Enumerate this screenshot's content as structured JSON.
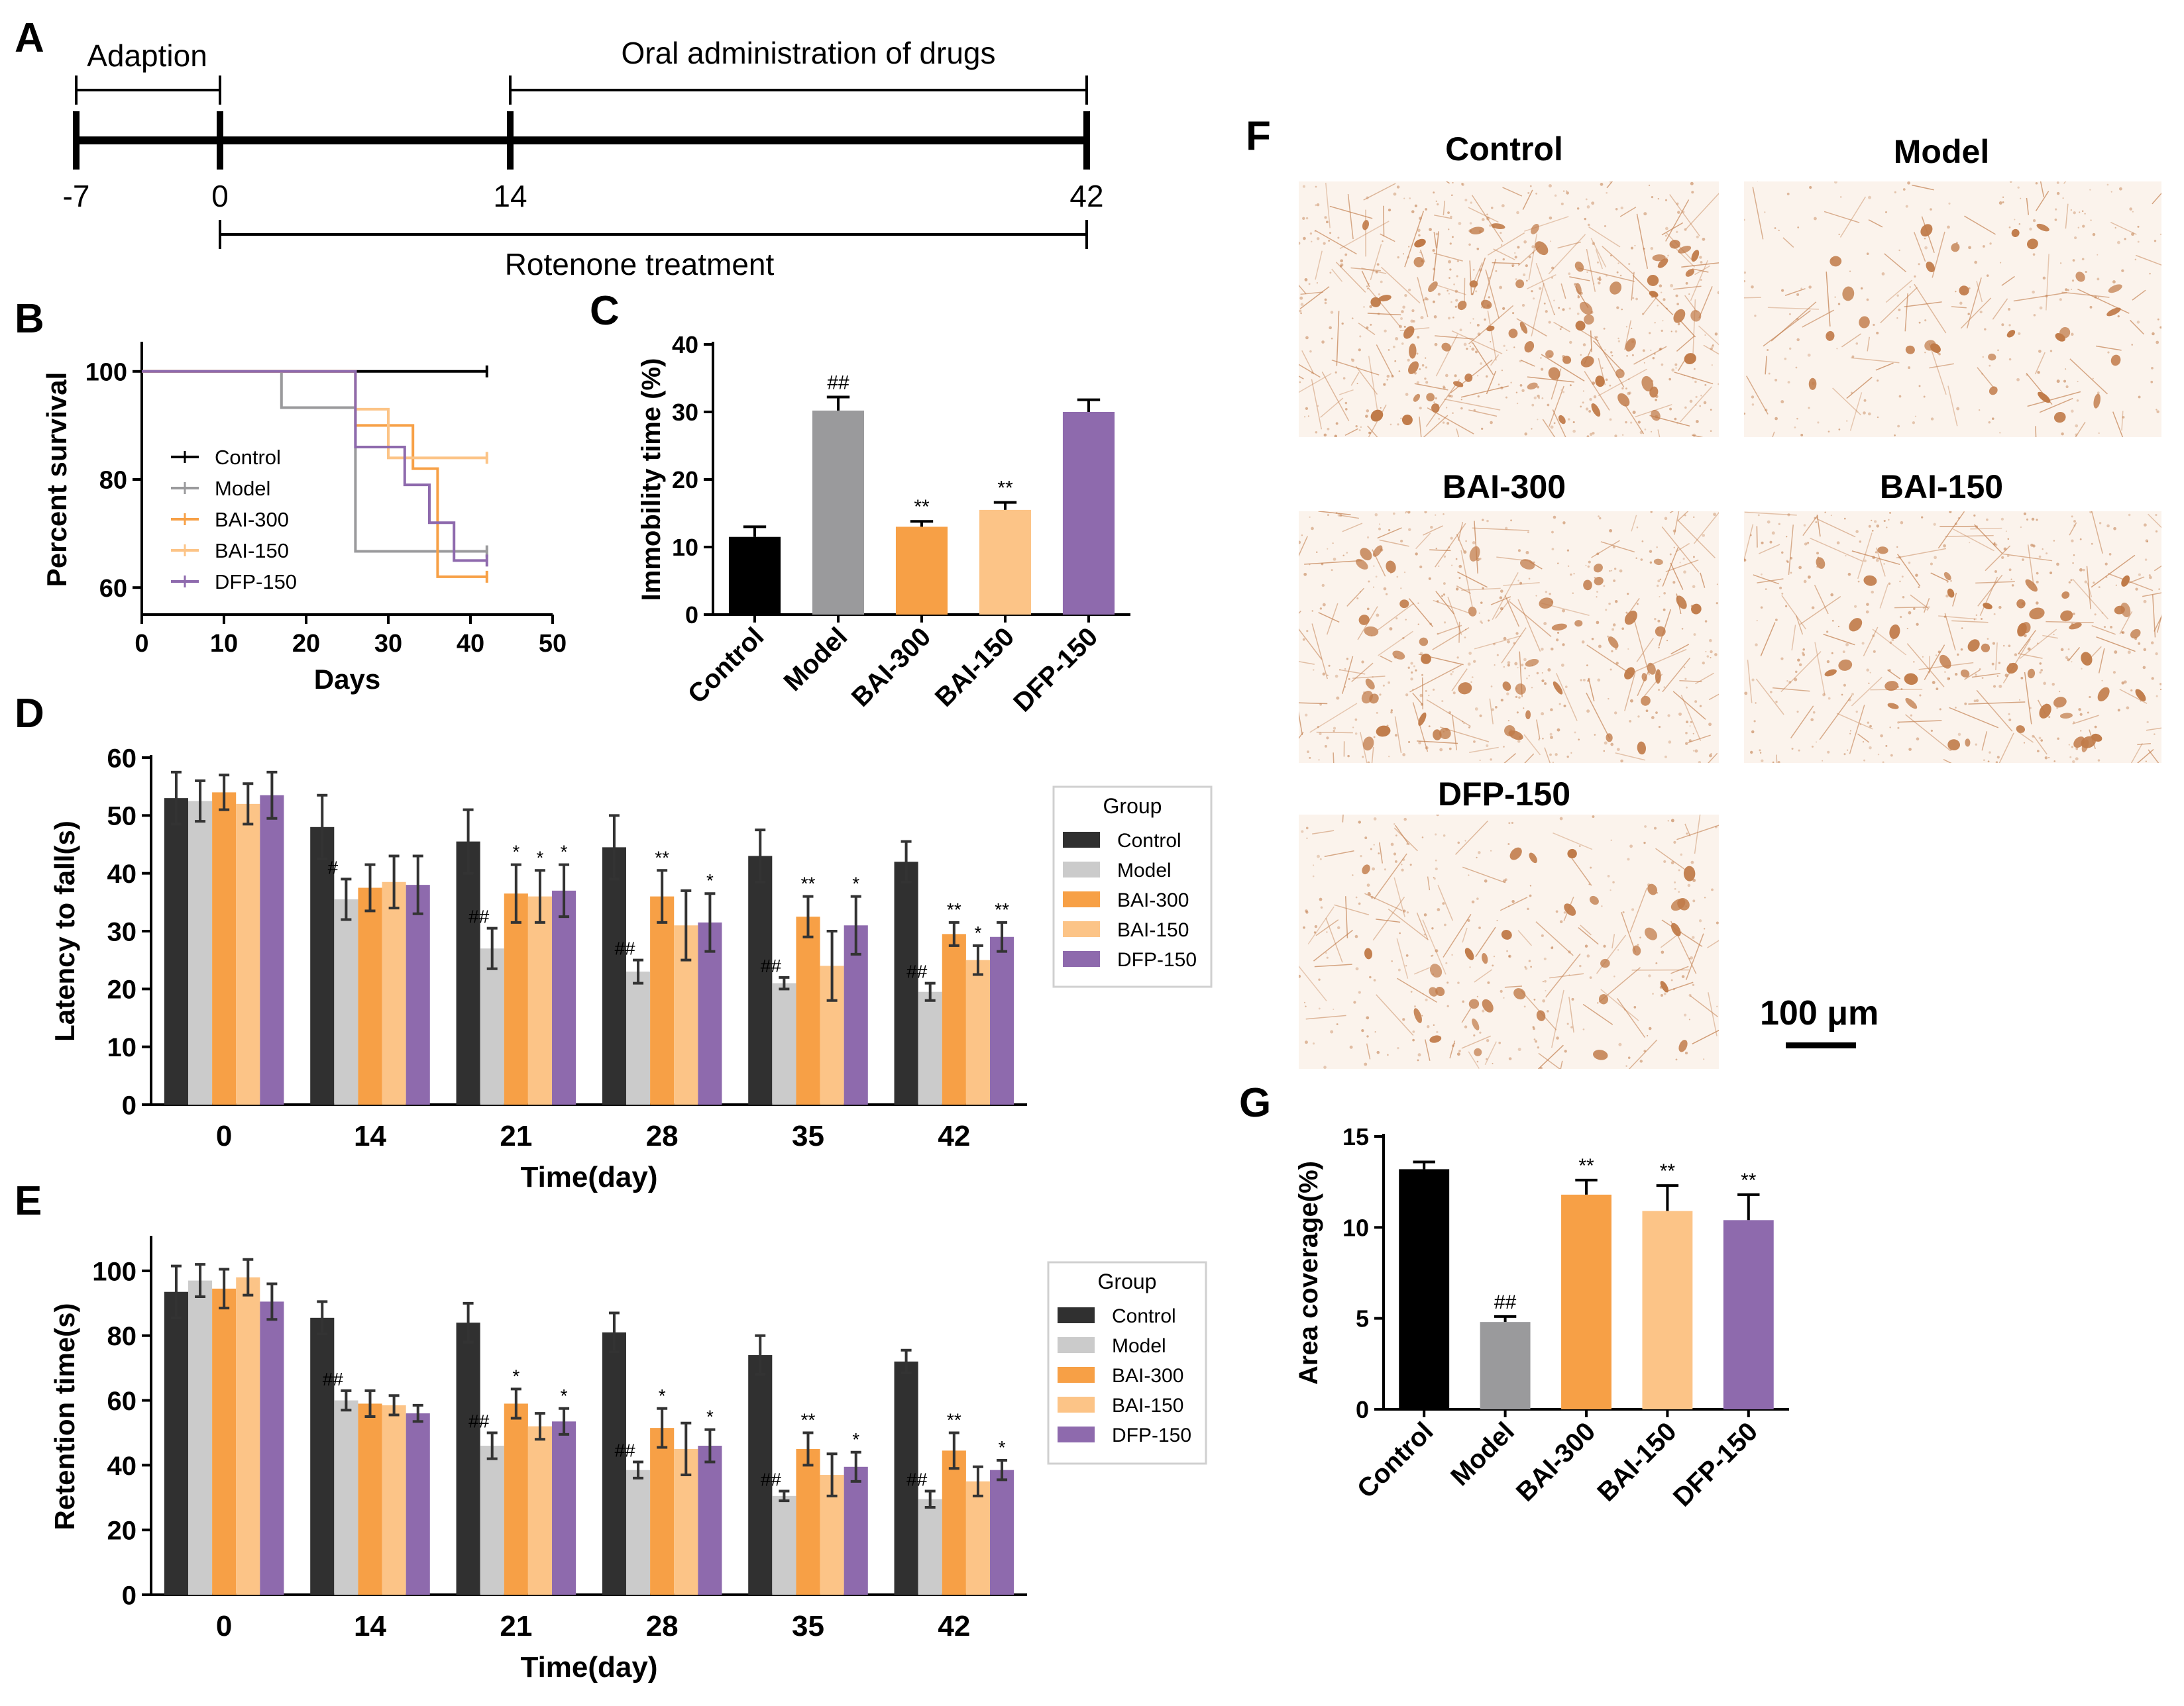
{
  "colors": {
    "control": "#000000",
    "model": "#9a9a9c",
    "bai300": "#f7a046",
    "bai150": "#fcc487",
    "dfp150": "#8e6aad",
    "control_dark": "#303030",
    "model_light": "#cbcbcb",
    "stain": "#c07a48"
  },
  "panel_labels": {
    "A": "A",
    "B": "B",
    "C": "C",
    "D": "D",
    "E": "E",
    "F": "F",
    "G": "G"
  },
  "timeline": {
    "adaption_label": "Adaption",
    "oral_label": "Oral administration of drugs",
    "rotenone_label": "Rotenone treatment",
    "ticks": [
      "-7",
      "0",
      "14",
      "42"
    ]
  },
  "micrographs": {
    "titles": [
      "Control",
      "Model",
      "BAI-300",
      "BAI-150",
      "DFP-150"
    ],
    "scale_bar_label": "100 μm"
  },
  "chart_data": [
    {
      "panel": "B",
      "type": "line",
      "xlabel": "Days",
      "ylabel": "Percent survival",
      "xlim": [
        0,
        50
      ],
      "ylim": [
        55,
        105
      ],
      "xticks": [
        "0",
        "10",
        "20",
        "30",
        "40",
        "50"
      ],
      "yticks": [
        "60",
        "80",
        "100"
      ],
      "series": [
        {
          "name": "Control",
          "color": "#000000",
          "steps": [
            [
              0,
              100
            ],
            [
              42,
              100
            ]
          ]
        },
        {
          "name": "Model",
          "color": "#9a9a9c",
          "steps": [
            [
              0,
              100
            ],
            [
              17,
              100
            ],
            [
              17,
              93.3
            ],
            [
              26,
              93.3
            ],
            [
              26,
              66.7
            ],
            [
              42,
              66.7
            ]
          ]
        },
        {
          "name": "BAI-300",
          "color": "#f7a046",
          "steps": [
            [
              0,
              100
            ],
            [
              26,
              100
            ],
            [
              26,
              90
            ],
            [
              33,
              90
            ],
            [
              33,
              82
            ],
            [
              36,
              82
            ],
            [
              36,
              62
            ],
            [
              42,
              62
            ]
          ]
        },
        {
          "name": "BAI-150",
          "color": "#fcc487",
          "steps": [
            [
              0,
              100
            ],
            [
              26,
              100
            ],
            [
              26,
              93
            ],
            [
              30,
              93
            ],
            [
              30,
              84
            ],
            [
              42,
              84
            ]
          ]
        },
        {
          "name": "DFP-150",
          "color": "#8e6aad",
          "steps": [
            [
              0,
              100
            ],
            [
              26,
              100
            ],
            [
              26,
              86
            ],
            [
              32,
              86
            ],
            [
              32,
              79
            ],
            [
              35,
              79
            ],
            [
              35,
              72
            ],
            [
              38,
              72
            ],
            [
              38,
              65
            ],
            [
              42,
              65
            ]
          ]
        }
      ]
    },
    {
      "panel": "C",
      "type": "bar",
      "ylabel": "Immobility time (%)",
      "ylim": [
        0,
        40
      ],
      "yticks": [
        "0",
        "10",
        "20",
        "30",
        "40"
      ],
      "categories": [
        "Control",
        "Model",
        "BAI-300",
        "BAI-150",
        "DFP-150"
      ],
      "values": [
        11.5,
        30.2,
        13.0,
        15.5,
        30.0
      ],
      "errors": [
        1.5,
        2.0,
        0.8,
        1.1,
        1.8
      ],
      "annotations": [
        "",
        "##",
        "**",
        "**",
        ""
      ]
    },
    {
      "panel": "D",
      "type": "bar",
      "xlabel": "Time(day)",
      "ylabel": "Latency to fall(s)",
      "ylim": [
        0,
        60
      ],
      "yticks": [
        "0",
        "10",
        "20",
        "30",
        "40",
        "50",
        "60"
      ],
      "legend_title": "Group",
      "categories": [
        "0",
        "14",
        "21",
        "28",
        "35",
        "42"
      ],
      "series": [
        {
          "name": "Control",
          "color": "#303030",
          "values": [
            53,
            48,
            45.5,
            44.5,
            43,
            42
          ],
          "errors": [
            4.5,
            5.5,
            5.5,
            5.5,
            4.5,
            3.5
          ],
          "annotations": [
            "",
            "",
            "",
            "",
            "",
            ""
          ]
        },
        {
          "name": "Model",
          "color": "#cbcbcb",
          "values": [
            52.5,
            35.5,
            27,
            23,
            21,
            19.5
          ],
          "errors": [
            3.5,
            3.5,
            3.5,
            2,
            1,
            1.5
          ],
          "annotations": [
            "",
            "#",
            "##",
            "##",
            "##",
            "##"
          ]
        },
        {
          "name": "BAI-300",
          "color": "#f7a046",
          "values": [
            54,
            37.5,
            36.5,
            36,
            32.5,
            29.5
          ],
          "errors": [
            3,
            4,
            5,
            4.5,
            3.5,
            2
          ],
          "annotations": [
            "",
            "",
            "*",
            "**",
            "**",
            "**"
          ]
        },
        {
          "name": "BAI-150",
          "color": "#fcc487",
          "values": [
            52,
            38.5,
            36,
            31,
            24,
            25
          ],
          "errors": [
            3.5,
            4.5,
            4.5,
            6,
            6,
            2.5
          ],
          "annotations": [
            "",
            "",
            "*",
            "",
            "",
            "*"
          ]
        },
        {
          "name": "DFP-150",
          "color": "#8e6aad",
          "values": [
            53.5,
            38,
            37,
            31.5,
            31,
            29
          ],
          "errors": [
            4,
            5,
            4.5,
            5,
            5,
            2.5
          ],
          "annotations": [
            "",
            "",
            "*",
            "*",
            "*",
            "**"
          ]
        }
      ]
    },
    {
      "panel": "E",
      "type": "bar",
      "xlabel": "Time(day)",
      "ylabel": "Retention time(s)",
      "ylim": [
        0,
        110
      ],
      "yticks": [
        "0",
        "20",
        "40",
        "60",
        "80",
        "100"
      ],
      "legend_title": "Group",
      "categories": [
        "0",
        "14",
        "21",
        "28",
        "35",
        "42"
      ],
      "series": [
        {
          "name": "Control",
          "color": "#303030",
          "values": [
            93.5,
            85.5,
            84,
            81,
            74,
            72
          ],
          "errors": [
            8,
            5,
            6,
            6,
            6,
            3.5
          ],
          "annotations": [
            "",
            "",
            "",
            "",
            "",
            ""
          ]
        },
        {
          "name": "Model",
          "color": "#cbcbcb",
          "values": [
            97,
            60,
            46,
            38.5,
            30.5,
            29.5
          ],
          "errors": [
            5,
            3,
            4,
            2.5,
            1.5,
            2.5
          ],
          "annotations": [
            "",
            "##",
            "##",
            "##",
            "##",
            "##"
          ]
        },
        {
          "name": "BAI-300",
          "color": "#f7a046",
          "values": [
            94.5,
            59,
            59,
            51.5,
            45,
            44.5
          ],
          "errors": [
            6,
            4,
            4.5,
            6,
            5,
            5.5
          ],
          "annotations": [
            "",
            "",
            "*",
            "*",
            "**",
            "**"
          ]
        },
        {
          "name": "BAI-150",
          "color": "#fcc487",
          "values": [
            98,
            58.5,
            52,
            45,
            37,
            35
          ],
          "errors": [
            5.5,
            3,
            4,
            8,
            6.5,
            4.5
          ],
          "annotations": [
            "",
            "",
            "",
            "",
            "",
            ""
          ]
        },
        {
          "name": "DFP-150",
          "color": "#8e6aad",
          "values": [
            90.5,
            56,
            53.5,
            46,
            39.5,
            38.5
          ],
          "errors": [
            5.5,
            2.5,
            4,
            5,
            4.5,
            3
          ],
          "annotations": [
            "",
            "",
            "*",
            "*",
            "*",
            "*"
          ]
        }
      ]
    },
    {
      "panel": "G",
      "type": "bar",
      "ylabel": "Area coverage(%)",
      "ylim": [
        0,
        15
      ],
      "yticks": [
        "0",
        "5",
        "10",
        "15"
      ],
      "categories": [
        "Control",
        "Model",
        "BAI-300",
        "BAI-150",
        "DFP-150"
      ],
      "values": [
        13.2,
        4.8,
        11.8,
        10.9,
        10.4
      ],
      "errors": [
        0.4,
        0.3,
        0.8,
        1.4,
        1.4
      ],
      "annotations": [
        "",
        "##",
        "**",
        "**",
        "**"
      ]
    }
  ]
}
